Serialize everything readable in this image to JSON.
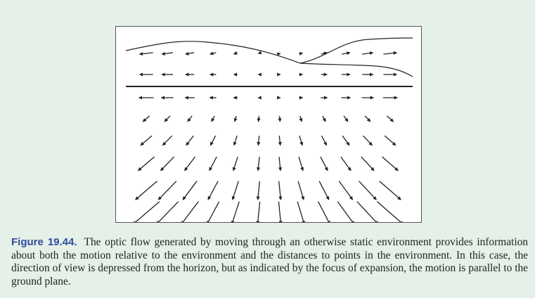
{
  "figure": {
    "label": "Figure 19.44.",
    "caption": "The optic flow generated by moving through an otherwise static environment provides information about both the motion relative to the environment and the distances to points in the environment. In this case, the direction of view is depressed from the horizon, but as indicated by the focus of expansion, the motion is parallel to the ground plane."
  },
  "colors": {
    "background": "#e5f0e8",
    "label": "#2e4d9c",
    "ink": "#222222"
  }
}
